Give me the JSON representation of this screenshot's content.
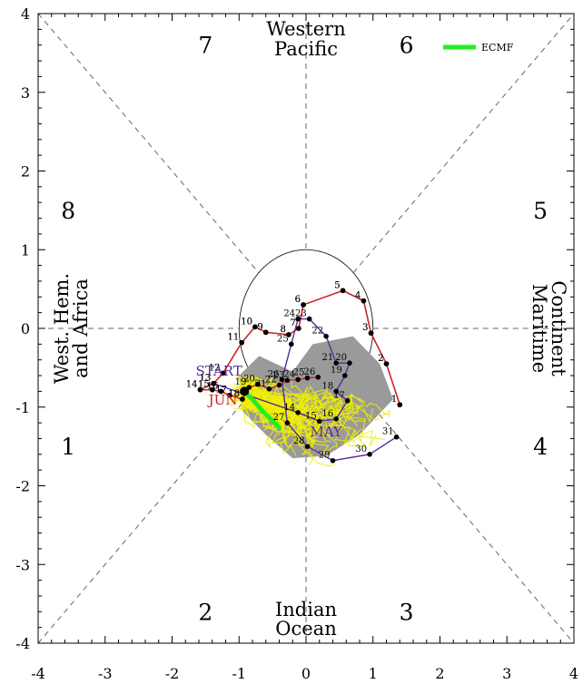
{
  "chart_data": {
    "type": "line",
    "xlim": [
      -4,
      4
    ],
    "ylim": [
      -4,
      4
    ],
    "x_ticks": [
      -4,
      -3,
      -2,
      -1,
      0,
      1,
      2,
      3,
      4
    ],
    "y_ticks": [
      -4,
      -3,
      -2,
      -1,
      0,
      1,
      2,
      3,
      4
    ],
    "unit_circle_radius": 1,
    "phase_labels": [
      {
        "text": "1",
        "x": -3.55,
        "y": -1.5
      },
      {
        "text": "2",
        "x": -1.5,
        "y": -3.6
      },
      {
        "text": "3",
        "x": 1.5,
        "y": -3.6
      },
      {
        "text": "4",
        "x": 3.5,
        "y": -1.5
      },
      {
        "text": "5",
        "x": 3.5,
        "y": 1.5
      },
      {
        "text": "6",
        "x": 1.5,
        "y": 3.6
      },
      {
        "text": "7",
        "x": -1.5,
        "y": 3.6
      },
      {
        "text": "8",
        "x": -3.55,
        "y": 1.5
      }
    ],
    "regions": {
      "top": [
        "Western",
        "Pacific"
      ],
      "bottom": [
        "Indian",
        "Ocean"
      ],
      "left": [
        "West. Hem.",
        "and Africa"
      ],
      "right": [
        "Maritime",
        "Continent"
      ]
    },
    "legend": {
      "label": "ECMF",
      "color": "#22ee22",
      "placement": "top-right"
    },
    "colors": {
      "observed_red": "#cc2222",
      "observed_purple": "#5a2a9a",
      "ensemble": "#f0f000",
      "spread": "#9a9a9a",
      "ensemble_mean": "#22ee22"
    },
    "month_labels": [
      {
        "text": "START",
        "x": -1.3,
        "y": -0.6,
        "color": "#5a2a9a"
      },
      {
        "text": "JUN",
        "x": -1.24,
        "y": -0.97,
        "color": "#cc2222"
      },
      {
        "text": "MAY",
        "x": 0.3,
        "y": -1.37,
        "color": "#5a2a9a"
      }
    ],
    "observed_may": [
      {
        "day": "1",
        "x": 1.4,
        "y": -0.97
      },
      {
        "day": "2",
        "x": 1.2,
        "y": -0.45
      },
      {
        "day": "3",
        "x": 0.97,
        "y": -0.06
      },
      {
        "day": "4",
        "x": 0.86,
        "y": 0.35
      },
      {
        "day": "5",
        "x": 0.55,
        "y": 0.48
      },
      {
        "day": "6",
        "x": -0.04,
        "y": 0.3
      },
      {
        "day": "7",
        "x": -0.11,
        "y": 0.0
      },
      {
        "day": "8",
        "x": -0.26,
        "y": -0.08
      },
      {
        "day": "9",
        "x": -0.6,
        "y": -0.05
      },
      {
        "day": "10",
        "x": -0.76,
        "y": 0.02
      },
      {
        "day": "11",
        "x": -0.96,
        "y": -0.18
      },
      {
        "day": "12",
        "x": -1.24,
        "y": -0.57
      },
      {
        "day": "13",
        "x": -1.38,
        "y": -0.7
      },
      {
        "day": "14",
        "x": -1.58,
        "y": -0.78
      },
      {
        "day": "15",
        "x": -1.4,
        "y": -0.78
      },
      {
        "day": "16",
        "x": -1.27,
        "y": -0.8
      },
      {
        "day": "17",
        "x": -1.14,
        "y": -0.85
      },
      {
        "day": "18",
        "x": -0.95,
        "y": -0.9
      },
      {
        "day": "19",
        "x": -0.85,
        "y": -0.75
      },
      {
        "day": "20",
        "x": -0.72,
        "y": -0.71
      },
      {
        "day": "21",
        "x": -0.55,
        "y": -0.77
      },
      {
        "day": "22",
        "x": -0.4,
        "y": -0.72
      },
      {
        "day": "23",
        "x": -0.28,
        "y": -0.66
      },
      {
        "day": "24",
        "x": -0.12,
        "y": -0.65
      },
      {
        "day": "25",
        "x": 0.02,
        "y": -0.63
      },
      {
        "day": "26",
        "x": 0.18,
        "y": -0.62
      }
    ],
    "observed_june": [
      {
        "day": "1",
        "x": 1.4,
        "y": -0.97
      },
      {
        "day": "2",
        "x": 1.2,
        "y": -0.45
      },
      {
        "day": "3",
        "x": 0.97,
        "y": -0.06
      },
      {
        "day": "4",
        "x": 0.86,
        "y": 0.35
      },
      {
        "day": "5",
        "x": 0.55,
        "y": 0.48
      },
      {
        "day": "6",
        "x": -0.04,
        "y": 0.3
      },
      {
        "day": "7",
        "x": -0.11,
        "y": 0.0
      },
      {
        "day": "8",
        "x": -0.26,
        "y": -0.08
      },
      {
        "day": "9",
        "x": -0.6,
        "y": -0.05
      },
      {
        "day": "10",
        "x": -0.76,
        "y": 0.02
      },
      {
        "day": "11",
        "x": -0.96,
        "y": -0.18
      },
      {
        "day": "12",
        "x": -1.24,
        "y": -0.57
      },
      {
        "day": "13",
        "x": -1.38,
        "y": -0.7
      },
      {
        "day": "14",
        "x": -1.58,
        "y": -0.78
      },
      {
        "day": "15",
        "x": -1.4,
        "y": -0.78
      },
      {
        "day": "16",
        "x": -1.27,
        "y": -0.8
      },
      {
        "day": "17",
        "x": -1.14,
        "y": -0.85
      },
      {
        "day": "18",
        "x": -0.95,
        "y": -0.9
      }
    ],
    "observed_purple": [
      {
        "day": "13",
        "x": -1.38,
        "y": -0.7
      },
      {
        "day": "14",
        "x": -0.12,
        "y": -1.07
      },
      {
        "day": "15",
        "x": 0.2,
        "y": -1.18
      },
      {
        "day": "16",
        "x": 0.45,
        "y": -1.15
      },
      {
        "day": "17",
        "x": 0.62,
        "y": -0.92
      },
      {
        "day": "18",
        "x": 0.45,
        "y": -0.8
      },
      {
        "day": "19",
        "x": 0.58,
        "y": -0.6
      },
      {
        "day": "20",
        "x": 0.65,
        "y": -0.44
      },
      {
        "day": "21",
        "x": 0.45,
        "y": -0.44
      },
      {
        "day": "22",
        "x": 0.3,
        "y": -0.1
      },
      {
        "day": "23",
        "x": 0.05,
        "y": 0.12
      },
      {
        "day": "24",
        "x": -0.12,
        "y": 0.12
      },
      {
        "day": "25",
        "x": -0.22,
        "y": -0.2
      },
      {
        "day": "26",
        "x": -0.36,
        "y": -0.65
      },
      {
        "day": "27",
        "x": -0.28,
        "y": -1.2
      },
      {
        "day": "28",
        "x": 0.02,
        "y": -1.5
      },
      {
        "day": "29",
        "x": 0.4,
        "y": -1.68
      },
      {
        "day": "30",
        "x": 0.95,
        "y": -1.6
      },
      {
        "day": "31",
        "x": 1.35,
        "y": -1.38
      }
    ],
    "ensemble_mean": [
      {
        "x": -0.92,
        "y": -0.8
      },
      {
        "x": -0.78,
        "y": -0.92
      },
      {
        "x": -0.65,
        "y": -1.05
      },
      {
        "x": -0.52,
        "y": -1.16
      },
      {
        "x": -0.4,
        "y": -1.26
      }
    ],
    "spread_polygon": [
      {
        "x": -0.7,
        "y": -0.35
      },
      {
        "x": -0.2,
        "y": -0.55
      },
      {
        "x": 0.1,
        "y": -0.2
      },
      {
        "x": 0.7,
        "y": -0.1
      },
      {
        "x": 1.1,
        "y": -0.45
      },
      {
        "x": 1.3,
        "y": -0.9
      },
      {
        "x": 0.8,
        "y": -1.35
      },
      {
        "x": 0.3,
        "y": -1.62
      },
      {
        "x": -0.2,
        "y": -1.65
      },
      {
        "x": -0.6,
        "y": -1.35
      },
      {
        "x": -0.95,
        "y": -1.05
      },
      {
        "x": -1.0,
        "y": -0.6
      }
    ]
  }
}
